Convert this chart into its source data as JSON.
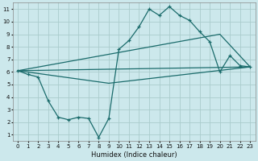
{
  "xlabel": "Humidex (Indice chaleur)",
  "bg_color": "#cce8ec",
  "grid_color": "#aacccc",
  "line_color": "#1a6b6b",
  "xlim": [
    -0.5,
    23.5
  ],
  "ylim": [
    0.5,
    11.5
  ],
  "xticks": [
    0,
    1,
    2,
    3,
    4,
    5,
    6,
    7,
    8,
    9,
    10,
    11,
    12,
    13,
    14,
    15,
    16,
    17,
    18,
    19,
    20,
    21,
    22,
    23
  ],
  "yticks": [
    1,
    2,
    3,
    4,
    5,
    6,
    7,
    8,
    9,
    10,
    11
  ],
  "line1_x": [
    0,
    1,
    2,
    3,
    4,
    5,
    6,
    7,
    8,
    9,
    10,
    11,
    12,
    13,
    14,
    15,
    16,
    17,
    18,
    19,
    20,
    21,
    22,
    23
  ],
  "line1_y": [
    6.1,
    5.8,
    5.6,
    3.7,
    2.4,
    2.2,
    2.4,
    2.3,
    0.8,
    2.3,
    7.8,
    8.5,
    9.6,
    11.0,
    10.5,
    11.2,
    10.5,
    10.1,
    9.2,
    8.4,
    6.0,
    7.3,
    6.5,
    6.4
  ],
  "line2_x": [
    0,
    23
  ],
  "line2_y": [
    6.1,
    6.4
  ],
  "line3_x": [
    0,
    9,
    23
  ],
  "line3_y": [
    6.1,
    5.1,
    6.4
  ],
  "line4_x": [
    0,
    20,
    23
  ],
  "line4_y": [
    6.1,
    9.0,
    6.4
  ]
}
